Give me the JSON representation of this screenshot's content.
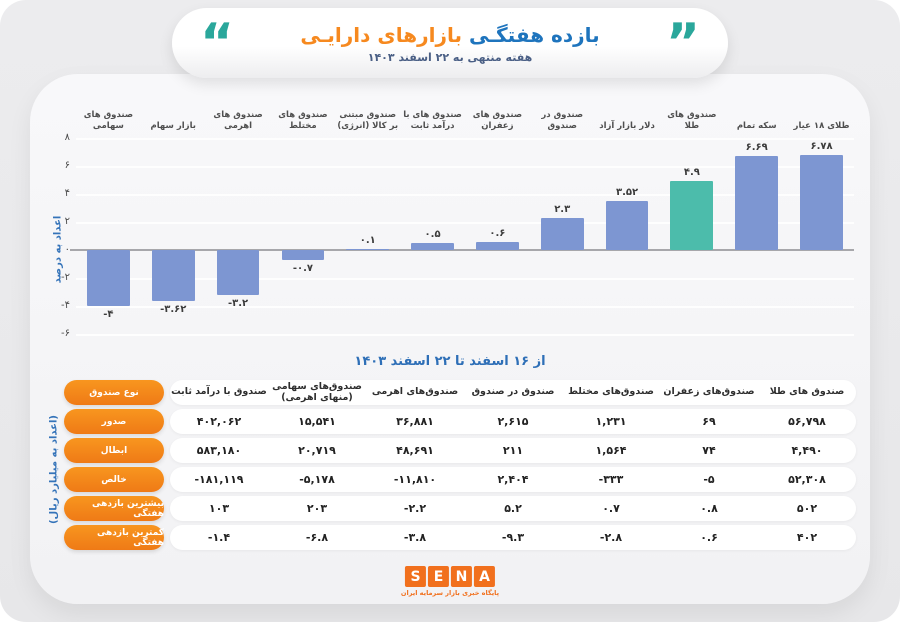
{
  "header": {
    "title_blue": "بازده هفتگـی",
    "title_orange": "بازارهای دارایـی",
    "subtitle": "هفته منتهی به ۲۲ اسفند ۱۴۰۳",
    "open_quote": "“",
    "close_quote": "”"
  },
  "chart_data": {
    "type": "bar",
    "title": "بازده هفتگی بازارهای دارایی",
    "ylabel": "اعداد به درصد",
    "ylim": [
      -6,
      8
    ],
    "grid": "faint horizontal lines",
    "legend": "none",
    "categories": [
      "صندوق های سهامی",
      "بازار سهام",
      "صندوق های اهرمی",
      "صندوق های مختلط",
      "صندوق مبتنی بر کالا (انرژی)",
      "صندوق های با درآمد ثابت",
      "صندوق های زعفران",
      "صندوق در صندوق",
      "دلار بازار آزاد",
      "صندوق های طلا",
      "سکه تمام",
      "طلای ۱۸ عیار"
    ],
    "values": [
      -4,
      -3.62,
      -3.2,
      -0.7,
      0.1,
      0.5,
      0.6,
      2.3,
      3.52,
      4.9,
      6.69,
      6.78
    ],
    "value_labels": [
      "-۴",
      "-۳.۶۲",
      "-۳.۲",
      "-۰.۷",
      "۰.۱",
      "۰.۵",
      "۰.۶",
      "۲.۳",
      "۳.۵۲",
      "۴.۹",
      "۶.۶۹",
      "۶.۷۸"
    ],
    "ytick_values": [
      8,
      6,
      4,
      2,
      0,
      -2,
      -4,
      -6
    ],
    "ytick_labels": [
      "۸",
      "۶",
      "۴",
      "۲",
      "۰",
      "-۲",
      "-۴",
      "-۶"
    ],
    "highlight_index": 9,
    "bar_color": "#7d96d2",
    "highlight_color": "#4cbcab"
  },
  "table": {
    "title": "از ۱۶ اسفند تا ۲۲ اسفند ۱۴۰۳",
    "side_note": "(اعداد به میلیارد ریال)",
    "row_header_title": "نوع صندوق",
    "columns": [
      "صندوق با درآمد ثابت",
      "صندوق‌های سهامی (منهای اهرمی)",
      "صندوق‌های اهرمی",
      "صندوق در صندوق",
      "صندوق‌های مختلط",
      "صندوق‌های زعفران",
      "صندوق های طلا"
    ],
    "rows": [
      {
        "label": "صدور",
        "values": [
          "۴۰۲,۰۶۲",
          "۱۵,۵۴۱",
          "۳۶,۸۸۱",
          "۲,۶۱۵",
          "۱,۲۳۱",
          "۶۹",
          "۵۶,۷۹۸"
        ]
      },
      {
        "label": "ابطال",
        "values": [
          "۵۸۳,۱۸۰",
          "۲۰,۷۱۹",
          "۴۸,۶۹۱",
          "۲۱۱",
          "۱,۵۶۴",
          "۷۴",
          "۴,۴۹۰"
        ]
      },
      {
        "label": "خالص",
        "values": [
          "-۱۸۱,۱۱۹",
          "-۵,۱۷۸",
          "-۱۱,۸۱۰",
          "۲,۴۰۴",
          "-۳۳۳",
          "-۵",
          "۵۲,۳۰۸"
        ]
      },
      {
        "label": "بیشترین بازدهی هفتگی",
        "values": [
          "۱۰۳",
          "۲۰۳",
          "-۲.۲",
          "۵.۲",
          "۰.۷",
          "۰.۸",
          "۵۰۲"
        ]
      },
      {
        "label": "کمترین بازدهی هفتگی",
        "values": [
          "-۱.۴",
          "-۶.۸",
          "-۳.۸",
          "-۹.۳",
          "-۲.۸",
          "۰.۶",
          "۴۰۲"
        ]
      }
    ]
  },
  "footer": {
    "logo_letters": [
      "S",
      "E",
      "N",
      "A"
    ],
    "tagline": "پایگاه خبری بازار سرمایه ایران"
  },
  "colors": {
    "accent_teal": "#2aa79b",
    "title_blue": "#1e74bd",
    "title_orange": "#f6891f",
    "bar_blue": "#7d96d2",
    "bar_teal": "#4cbcab",
    "pill_orange": "#f68b1f",
    "table_title_blue": "#2e6fb7",
    "sena_orange": "#f1701d"
  }
}
